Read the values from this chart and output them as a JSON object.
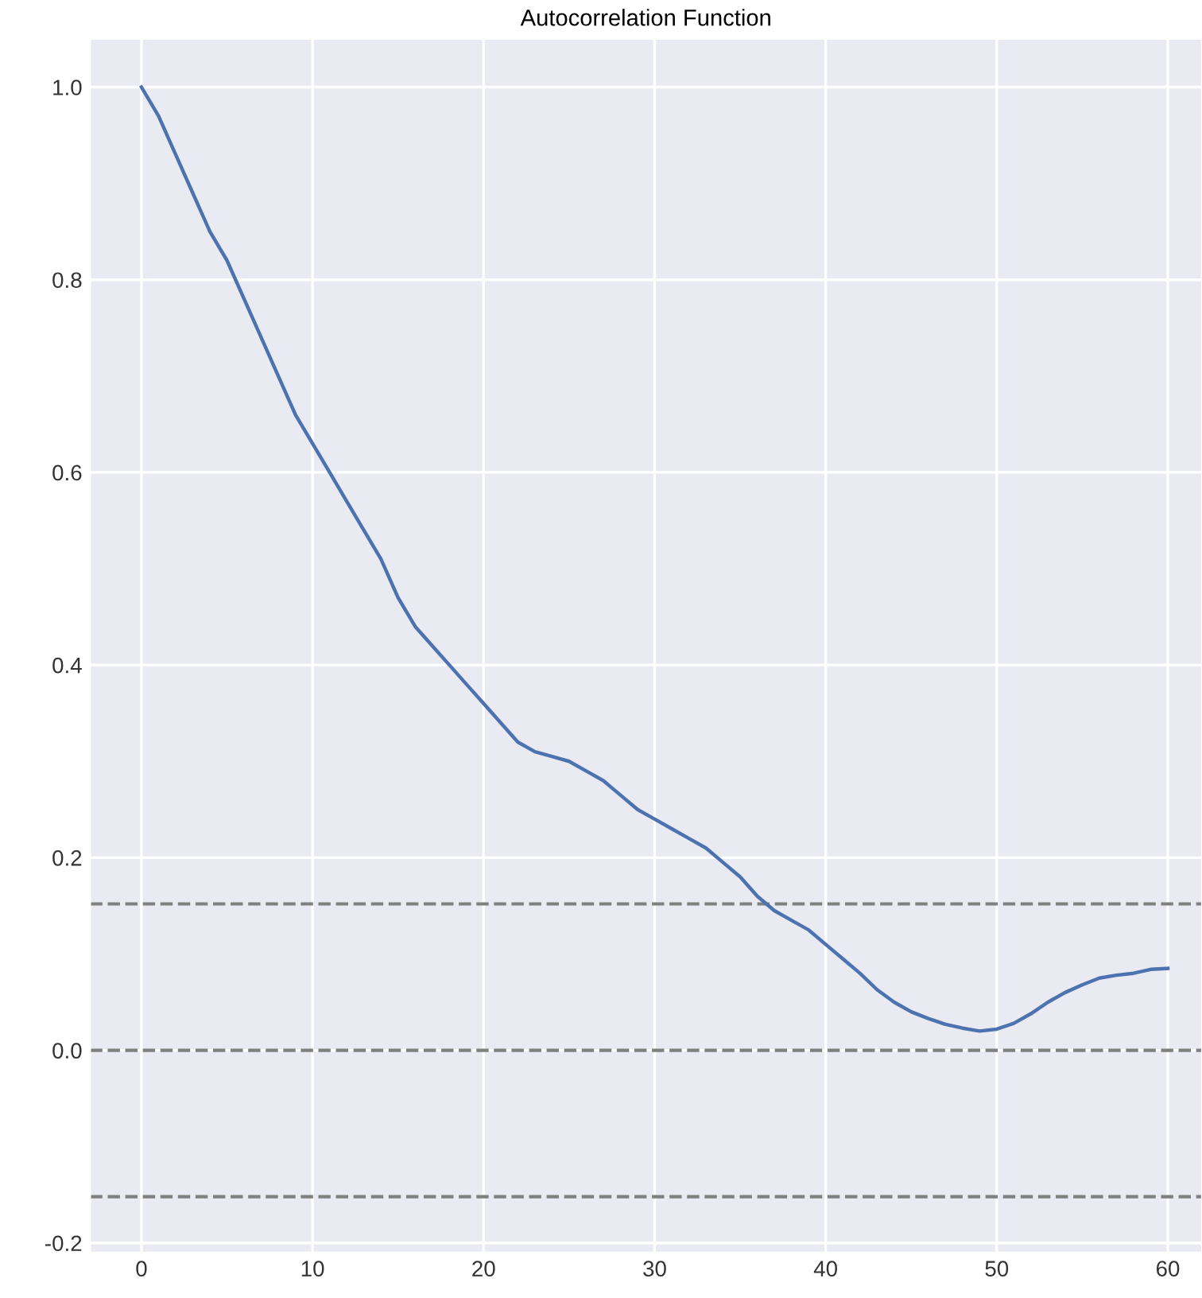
{
  "chart_data": {
    "type": "line",
    "title": "Autocorrelation Function",
    "x": [
      0,
      1,
      2,
      3,
      4,
      5,
      6,
      7,
      8,
      9,
      10,
      11,
      12,
      13,
      14,
      15,
      16,
      17,
      18,
      19,
      20,
      21,
      22,
      23,
      24,
      25,
      26,
      27,
      28,
      29,
      30,
      31,
      32,
      33,
      34,
      35,
      36,
      37,
      38,
      39,
      40,
      41,
      42,
      43,
      44,
      45,
      46,
      47,
      48,
      49,
      50,
      51,
      52,
      53,
      54,
      55,
      56,
      57,
      58,
      59,
      60
    ],
    "series": [
      {
        "color": "#4c72b0",
        "values": [
          1.0,
          0.97,
          0.93,
          0.89,
          0.85,
          0.82,
          0.78,
          0.74,
          0.7,
          0.66,
          0.63,
          0.6,
          0.57,
          0.54,
          0.51,
          0.47,
          0.44,
          0.42,
          0.4,
          0.38,
          0.36,
          0.34,
          0.32,
          0.31,
          0.305,
          0.3,
          0.29,
          0.28,
          0.265,
          0.25,
          0.24,
          0.23,
          0.22,
          0.21,
          0.195,
          0.18,
          0.16,
          0.145,
          0.135,
          0.125,
          0.11,
          0.095,
          0.08,
          0.063,
          0.05,
          0.04,
          0.033,
          0.027,
          0.023,
          0.02,
          0.022,
          0.028,
          0.038,
          0.05,
          0.06,
          0.068,
          0.075,
          0.078,
          0.08,
          0.084,
          0.085
        ]
      }
    ],
    "xlim": [
      -3,
      62
    ],
    "ylim": [
      -0.21,
      1.05
    ],
    "xticks": [
      0,
      10,
      20,
      30,
      40,
      50,
      60
    ],
    "yticks": [
      {
        "value": -0.2,
        "label": "-0.2"
      },
      {
        "value": 0,
        "label": "0.0"
      },
      {
        "value": 0.2,
        "label": "0.2"
      },
      {
        "value": 0.4,
        "label": "0.4"
      },
      {
        "value": 0.6,
        "label": "0.6"
      },
      {
        "value": 0.8,
        "label": "0.8"
      },
      {
        "value": 1.0,
        "label": "1.0"
      }
    ],
    "grid": true,
    "marker": "none",
    "line_style": "solid",
    "ref_lines": [
      {
        "axis": "y",
        "value": 0.152,
        "color": "#808080",
        "line_style": "dashed"
      },
      {
        "axis": "y",
        "value": 0,
        "color": "#808080",
        "line_style": "dashed"
      },
      {
        "axis": "y",
        "value": -0.152,
        "color": "#808080",
        "line_style": "dashed"
      }
    ]
  }
}
